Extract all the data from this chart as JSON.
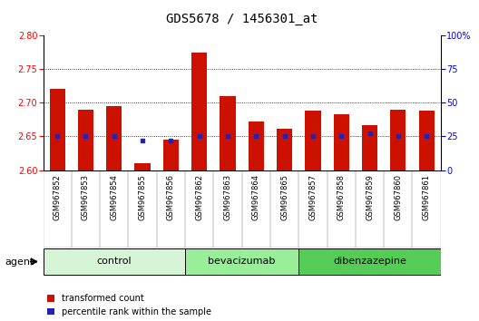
{
  "title": "GDS5678 / 1456301_at",
  "samples": [
    "GSM967852",
    "GSM967853",
    "GSM967854",
    "GSM967855",
    "GSM967856",
    "GSM967862",
    "GSM967863",
    "GSM967864",
    "GSM967865",
    "GSM967857",
    "GSM967858",
    "GSM967859",
    "GSM967860",
    "GSM967861"
  ],
  "red_values": [
    2.72,
    2.69,
    2.695,
    2.61,
    2.645,
    2.775,
    2.71,
    2.672,
    2.661,
    2.688,
    2.683,
    2.667,
    2.69,
    2.688
  ],
  "blue_values": [
    25,
    25,
    25,
    22,
    22,
    25,
    25,
    25,
    25,
    25,
    25,
    27,
    25,
    25
  ],
  "ylim_left": [
    2.6,
    2.8
  ],
  "ylim_right": [
    0,
    100
  ],
  "yticks_left": [
    2.6,
    2.65,
    2.7,
    2.75,
    2.8
  ],
  "yticks_right": [
    0,
    25,
    50,
    75,
    100
  ],
  "grid_lines": [
    2.65,
    2.7,
    2.75
  ],
  "groups": [
    {
      "label": "control",
      "start": 0,
      "end": 5,
      "color": "#d6f5d6"
    },
    {
      "label": "bevacizumab",
      "start": 5,
      "end": 9,
      "color": "#99ee99"
    },
    {
      "label": "dibenzazepine",
      "start": 9,
      "end": 14,
      "color": "#55cc55"
    }
  ],
  "bar_width": 0.55,
  "bar_color_red": "#cc1100",
  "bar_color_blue": "#2222bb",
  "baseline": 2.6,
  "xtick_bg": "#cccccc",
  "agent_label": "agent",
  "legend_red": "transformed count",
  "legend_blue": "percentile rank within the sample",
  "title_fontsize": 10,
  "tick_fontsize": 7,
  "xtick_fontsize": 6,
  "group_fontsize": 8
}
